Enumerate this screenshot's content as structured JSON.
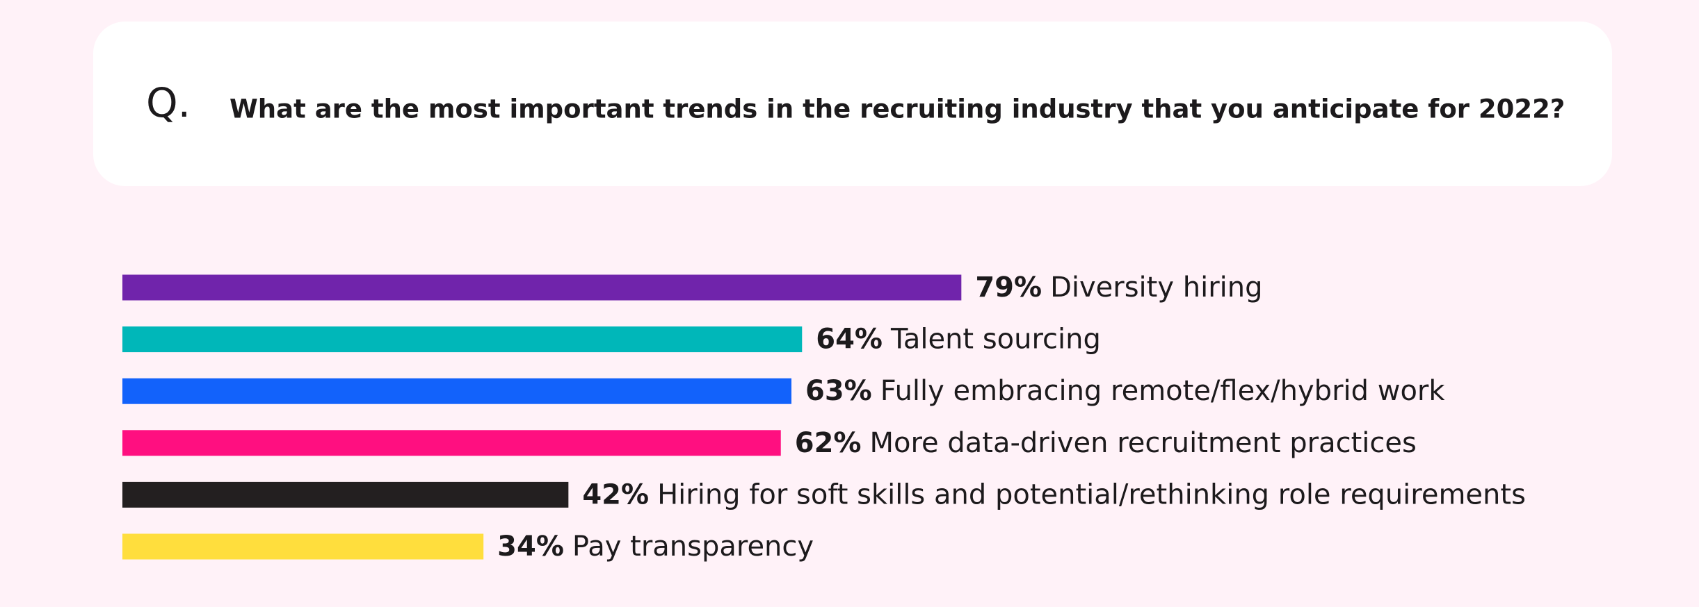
{
  "chart_data": {
    "type": "bar",
    "question_label": "Q.",
    "title": "What are the most important trends in the recruiting industry that you anticipate for 2022?",
    "categories": [
      "Diversity hiring",
      "Talent sourcing",
      "Fully embracing remote/flex/hybrid work",
      "More data-driven recruitment practices",
      "Hiring for soft skills and potential/rethinking role requirements",
      "Pay transparency"
    ],
    "values": [
      79,
      64,
      63,
      62,
      42,
      34
    ],
    "value_labels": [
      "79%",
      "64%",
      "63%",
      "62%",
      "42%",
      "34%"
    ],
    "colors": [
      "#7024ab",
      "#00b7b9",
      "#1262fb",
      "#ff0f80",
      "#231f20",
      "#ffde3d"
    ]
  }
}
